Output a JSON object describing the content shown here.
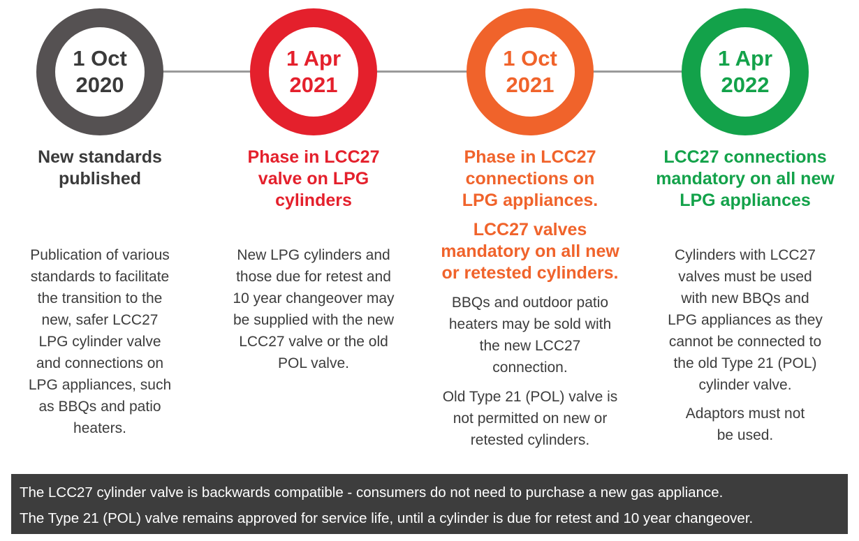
{
  "colors": {
    "grey": "#555152",
    "red": "#e4202c",
    "orange": "#f0632b",
    "green": "#13a24a",
    "connector": "#9a9a9a",
    "banner_bg": "#3d3d3d"
  },
  "milestones": [
    {
      "date_line1": "1 Oct",
      "date_line2": "2020",
      "heading": [
        "New standards",
        "published"
      ],
      "heading2": [],
      "paragraphs": [
        [
          "Publication of various",
          "standards to facilitate",
          "the transition to the",
          "new, safer LCC27",
          "LPG cylinder valve",
          "and connections on",
          "LPG appliances, such",
          "as BBQs and patio",
          "heaters."
        ]
      ]
    },
    {
      "date_line1": "1 Apr",
      "date_line2": "2021",
      "heading": [
        "Phase in LCC27",
        "valve on LPG",
        "cylinders"
      ],
      "heading2": [],
      "paragraphs": [
        [
          "New LPG cylinders and",
          "those due for retest and",
          "10 year changeover may",
          "be supplied with the new",
          "LCC27 valve or the old",
          "POL valve."
        ]
      ]
    },
    {
      "date_line1": "1 Oct",
      "date_line2": "2021",
      "heading": [
        "Phase in LCC27",
        "connections on",
        "LPG appliances."
      ],
      "heading2": [
        "LCC27 valves",
        "mandatory on all new",
        "or retested cylinders."
      ],
      "paragraphs": [
        [
          "BBQs and outdoor patio",
          "heaters may be sold with",
          "the new LCC27",
          "connection."
        ],
        [
          "Old Type 21 (POL) valve is",
          "not permitted on new or",
          "retested cylinders."
        ]
      ]
    },
    {
      "date_line1": "1 Apr",
      "date_line2": "2022",
      "heading": [
        "LCC27 connections",
        "mandatory on all new",
        "LPG appliances"
      ],
      "heading2": [],
      "paragraphs": [
        [
          "Cylinders with LCC27",
          "valves must be used",
          "with new BBQs and",
          "LPG appliances as they",
          "cannot be connected to",
          "the old Type 21 (POL)",
          "cylinder valve."
        ],
        [
          "Adaptors must not",
          "be used."
        ]
      ]
    }
  ],
  "banner": {
    "line1": "The LCC27 cylinder valve is backwards compatible - consumers do not need to purchase a new gas appliance.",
    "line2": "The Type 21 (POL) valve remains approved for service life, until a cylinder is due for retest and 10 year changeover."
  }
}
